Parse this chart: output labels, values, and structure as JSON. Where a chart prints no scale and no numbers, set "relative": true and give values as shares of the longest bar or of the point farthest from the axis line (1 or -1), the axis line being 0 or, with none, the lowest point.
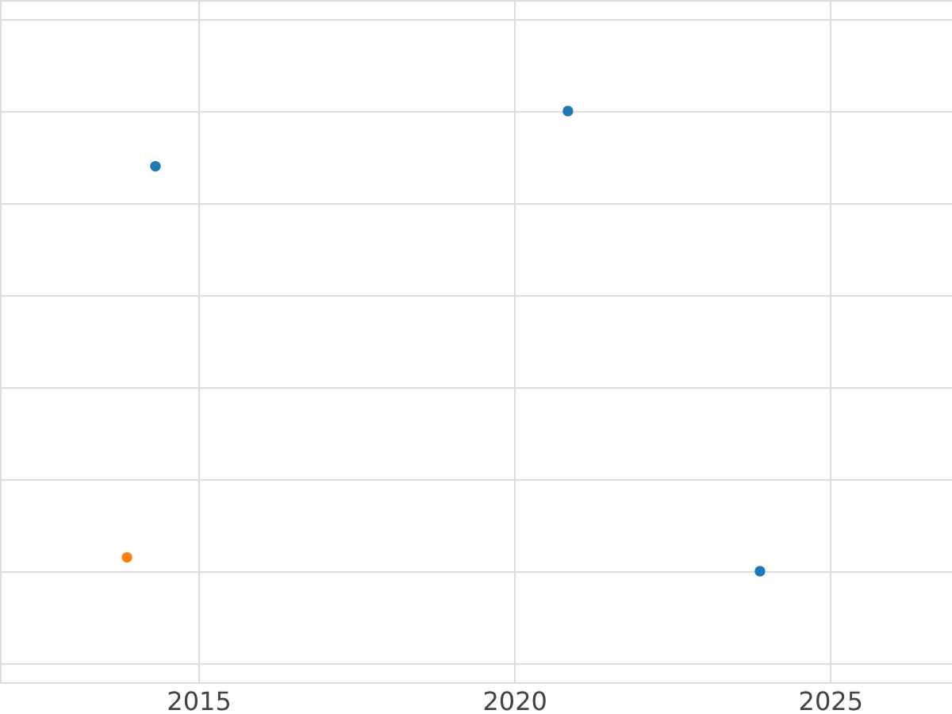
{
  "chart_data": {
    "type": "scatter",
    "relative": true,
    "xlim": [
      2011.86,
      2026.93
    ],
    "xticks": [
      2015,
      2020,
      2025
    ],
    "grid": true,
    "marker": "circle",
    "series": [
      {
        "color": "#1f77b4",
        "x": [
          2014.32,
          2020.85,
          2023.89
        ],
        "values": [
          0.88,
          1,
          0
        ]
      },
      {
        "color": "#ff7f0e",
        "x": [
          2013.87
        ],
        "values": [
          0.03
        ]
      }
    ]
  }
}
